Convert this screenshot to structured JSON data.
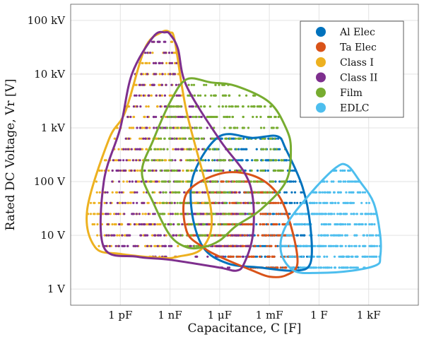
{
  "chart_data": {
    "type": "scatter",
    "title": "",
    "xlabel": "Capacitance, C [F]",
    "ylabel": "Rated DC Voltage, Vr [V]",
    "x_scale": "log",
    "y_scale": "log",
    "xlim": [
      1e-15,
      1000000.0
    ],
    "ylim": [
      0.5,
      200000
    ],
    "grid": true,
    "legend_position": "top-right",
    "x_ticks": [
      {
        "value": 1e-12,
        "label": "1 pF"
      },
      {
        "value": 1e-09,
        "label": "1 nF"
      },
      {
        "value": 1e-06,
        "label": "1 μF"
      },
      {
        "value": 0.001,
        "label": "1 mF"
      },
      {
        "value": 1,
        "label": "1 F"
      },
      {
        "value": 1000.0,
        "label": "1 kF"
      }
    ],
    "y_ticks": [
      {
        "value": 1,
        "label": "1 V"
      },
      {
        "value": 10,
        "label": "10 V"
      },
      {
        "value": 100,
        "label": "100 V"
      },
      {
        "value": 1000,
        "label": "1 kV"
      },
      {
        "value": 10000,
        "label": "10 kV"
      },
      {
        "value": 100000,
        "label": "100 kV"
      }
    ],
    "series": [
      {
        "name": "Al Elec",
        "color": "#0072BD",
        "boundary": [
          [
            3e-08,
            150
          ],
          [
            1e-06,
            700
          ],
          [
            0.0001,
            650
          ],
          [
            0.003,
            700
          ],
          [
            0.01,
            400
          ],
          [
            0.1,
            80
          ],
          [
            0.3,
            15
          ],
          [
            0.3,
            3
          ],
          [
            0.03,
            2.2
          ],
          [
            0.0003,
            2.5
          ],
          [
            3e-06,
            3
          ],
          [
            1e-07,
            6
          ],
          [
            2e-08,
            30
          ]
        ]
      },
      {
        "name": "Ta Elec",
        "color": "#D95319",
        "boundary": [
          [
            1e-08,
            60
          ],
          [
            1e-06,
            140
          ],
          [
            0.0001,
            130
          ],
          [
            0.003,
            60
          ],
          [
            0.02,
            15
          ],
          [
            0.05,
            3
          ],
          [
            0.01,
            1.8
          ],
          [
            0.001,
            1.7
          ],
          [
            0.0001,
            2.2
          ],
          [
            1e-06,
            4
          ],
          [
            1e-07,
            6
          ],
          [
            1e-08,
            12
          ]
        ]
      },
      {
        "name": "Class I",
        "color": "#EDB120",
        "boundary": [
          [
            2e-12,
            2000
          ],
          [
            3e-11,
            30000
          ],
          [
            3e-10,
            60000
          ],
          [
            1e-09,
            60000
          ],
          [
            2e-09,
            40000
          ],
          [
            1e-08,
            2000
          ],
          [
            3e-07,
            30
          ],
          [
            1e-07,
            6
          ],
          [
            3e-09,
            4
          ],
          [
            3e-10,
            3.8
          ],
          [
            1e-12,
            4.5
          ],
          [
            3e-14,
            6
          ],
          [
            1e-14,
            30
          ],
          [
            2e-13,
            600
          ]
        ]
      },
      {
        "name": "Class II",
        "color": "#7E2F8E",
        "boundary": [
          [
            1e-12,
            1000
          ],
          [
            5e-12,
            10000
          ],
          [
            1e-10,
            50000
          ],
          [
            5e-10,
            60000
          ],
          [
            1e-09,
            55000
          ],
          [
            3e-09,
            30000
          ],
          [
            1e-08,
            6000
          ],
          [
            1e-06,
            600
          ],
          [
            3e-05,
            150
          ],
          [
            0.0001,
            50
          ],
          [
            0.0001,
            10
          ],
          [
            3e-05,
            3
          ],
          [
            1e-05,
            2.2
          ],
          [
            1e-06,
            2.5
          ],
          [
            1e-09,
            3.5
          ],
          [
            1e-11,
            4
          ],
          [
            1e-13,
            6
          ],
          [
            1e-13,
            100
          ]
        ]
      },
      {
        "name": "Film",
        "color": "#77AC30",
        "boundary": [
          [
            1e-10,
            600
          ],
          [
            1e-09,
            3000
          ],
          [
            1e-08,
            8000
          ],
          [
            3e-07,
            7000
          ],
          [
            1e-05,
            6000
          ],
          [
            0.001,
            3000
          ],
          [
            0.01,
            1000
          ],
          [
            0.02,
            400
          ],
          [
            0.01,
            100
          ],
          [
            0.0003,
            30
          ],
          [
            1e-05,
            15
          ],
          [
            1e-06,
            8
          ],
          [
            1e-07,
            6
          ],
          [
            1e-08,
            6
          ],
          [
            1e-09,
            10
          ],
          [
            1e-10,
            40
          ],
          [
            2e-11,
            150
          ]
        ]
      },
      {
        "name": "EDLC",
        "color": "#4DBEEE",
        "boundary": [
          [
            0.01,
            15
          ],
          [
            0.3,
            60
          ],
          [
            10,
            180
          ],
          [
            50,
            200
          ],
          [
            300,
            100
          ],
          [
            2000,
            40
          ],
          [
            5000,
            10
          ],
          [
            5000,
            4
          ],
          [
            3000,
            2.8
          ],
          [
            100,
            2.2
          ],
          [
            1,
            2
          ],
          [
            0.03,
            2.2
          ],
          [
            0.005,
            5
          ]
        ]
      }
    ]
  }
}
